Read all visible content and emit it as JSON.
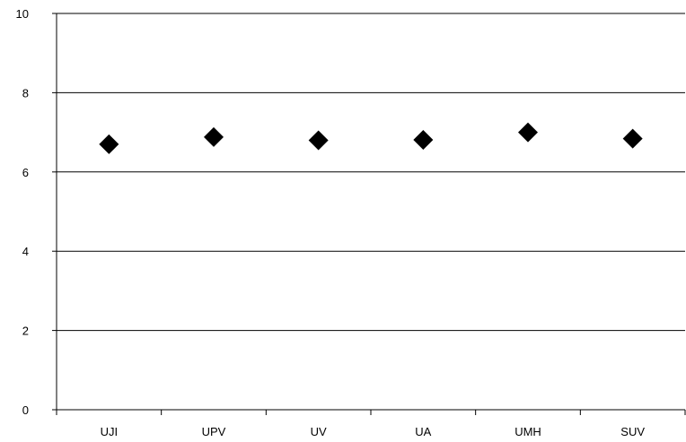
{
  "chart_data": {
    "type": "scatter",
    "categories": [
      "UJI",
      "UPV",
      "UV",
      "UA",
      "UMH",
      "SUV"
    ],
    "values": [
      6.7,
      6.88,
      6.8,
      6.81,
      7.0,
      6.84
    ],
    "ylim": [
      0,
      10
    ],
    "yticks": [
      0,
      2,
      4,
      6,
      8,
      10
    ],
    "grid": "horizontal",
    "marker": "diamond",
    "colors": {
      "marker": "#000000",
      "grid": "#000000",
      "axis": "#000000"
    }
  }
}
